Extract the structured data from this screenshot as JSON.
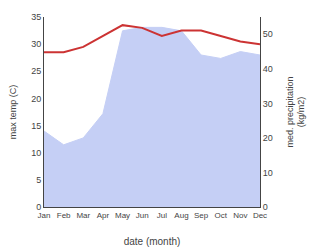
{
  "chart_data": {
    "type": "line",
    "xlabel": "date (month)",
    "ylabel": "max temp (C)",
    "y2label": "med. precipitation\n(kg/m2)",
    "categories": [
      "Jan",
      "Feb",
      "Mar",
      "Apr",
      "May",
      "Jun",
      "Jul",
      "Aug",
      "Sep",
      "Oct",
      "Nov",
      "Dec"
    ],
    "series": [
      {
        "type": "area",
        "axis": "y2",
        "color": "#c5cff5",
        "values": [
          22,
          18,
          20,
          27,
          51,
          52,
          52,
          51,
          44,
          43,
          45,
          44
        ]
      },
      {
        "type": "line",
        "color": "#cc3333",
        "values": [
          28.5,
          28.5,
          29.5,
          31.5,
          33.5,
          33.0,
          31.5,
          32.5,
          32.5,
          31.5,
          30.5,
          30.0
        ]
      }
    ],
    "ylim": [
      0,
      35
    ],
    "yticks": [
      0,
      5,
      10,
      15,
      20,
      25,
      30,
      35
    ],
    "y2lim": [
      0,
      55
    ],
    "y2ticks": [
      0,
      10,
      20,
      30,
      40,
      50
    ],
    "grid": false
  }
}
